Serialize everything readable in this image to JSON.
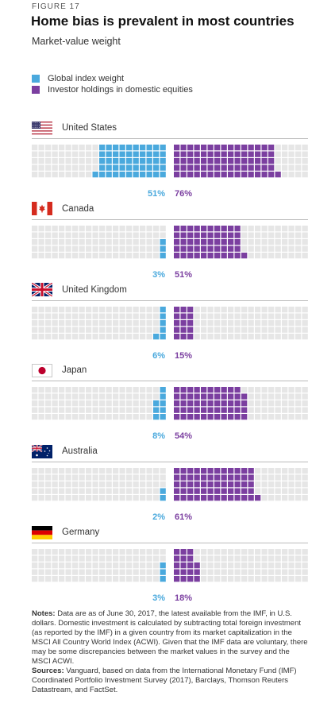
{
  "figure_label": "FIGURE 17",
  "title": "Home bias is prevalent in most countries",
  "subtitle": "Market-value weight",
  "legend": [
    {
      "label": "Global index weight",
      "color": "#4aa9dd"
    },
    {
      "label": "Investor holdings in domestic equities",
      "color": "#7b3fa0"
    }
  ],
  "colors": {
    "global": "#4aa9dd",
    "domestic": "#7b3fa0",
    "empty": "#e6e6e6"
  },
  "chart_data": {
    "type": "waffle",
    "title": "Home bias is prevalent in most countries",
    "subtitle": "Market-value weight",
    "series": [
      {
        "name": "Global index weight",
        "values": [
          51,
          3,
          6,
          8,
          2,
          3
        ]
      },
      {
        "name": "Investor holdings in domestic equities",
        "values": [
          76,
          51,
          15,
          54,
          61,
          18
        ]
      }
    ],
    "categories": [
      "United States",
      "Canada",
      "United Kingdom",
      "Japan",
      "Australia",
      "Germany"
    ],
    "countries": [
      {
        "name": "United States",
        "flag": "us-flag",
        "global": 51,
        "global_label": "51%",
        "domestic": 76,
        "domestic_label": "76%"
      },
      {
        "name": "Canada",
        "flag": "canada-flag",
        "global": 3,
        "global_label": "3%",
        "domestic": 51,
        "domestic_label": "51%"
      },
      {
        "name": "United Kingdom",
        "flag": "uk-flag",
        "global": 6,
        "global_label": "6%",
        "domestic": 15,
        "domestic_label": "15%"
      },
      {
        "name": "Japan",
        "flag": "japan-flag",
        "global": 8,
        "global_label": "8%",
        "domestic": 54,
        "domestic_label": "54%"
      },
      {
        "name": "Australia",
        "flag": "australia-flag",
        "global": 2,
        "global_label": "2%",
        "domestic": 61,
        "domestic_label": "61%"
      },
      {
        "name": "Germany",
        "flag": "germany-flag",
        "global": 3,
        "global_label": "3%",
        "domestic": 18,
        "domestic_label": "18%"
      }
    ]
  },
  "notes": {
    "notes_label": "Notes:",
    "notes_text": " Data are as of June 30, 2017, the latest available from the IMF, in U.S. dollars. Domestic investment is calculated by subtracting total foreign investment (as reported by the IMF) in a given country from its market capitalization in the MSCI All Country World Index (ACWI). Given that the IMF data are voluntary, there may be some discrepancies between the market values in the survey and the MSCI ACWI.",
    "sources_label": "Sources:",
    "sources_text": " Vanguard, based on data from the International Monetary Fund (IMF) Coordinated Portfolio Investment Survey (2017), Barclays, Thomson Reuters Datastream, and FactSet."
  }
}
